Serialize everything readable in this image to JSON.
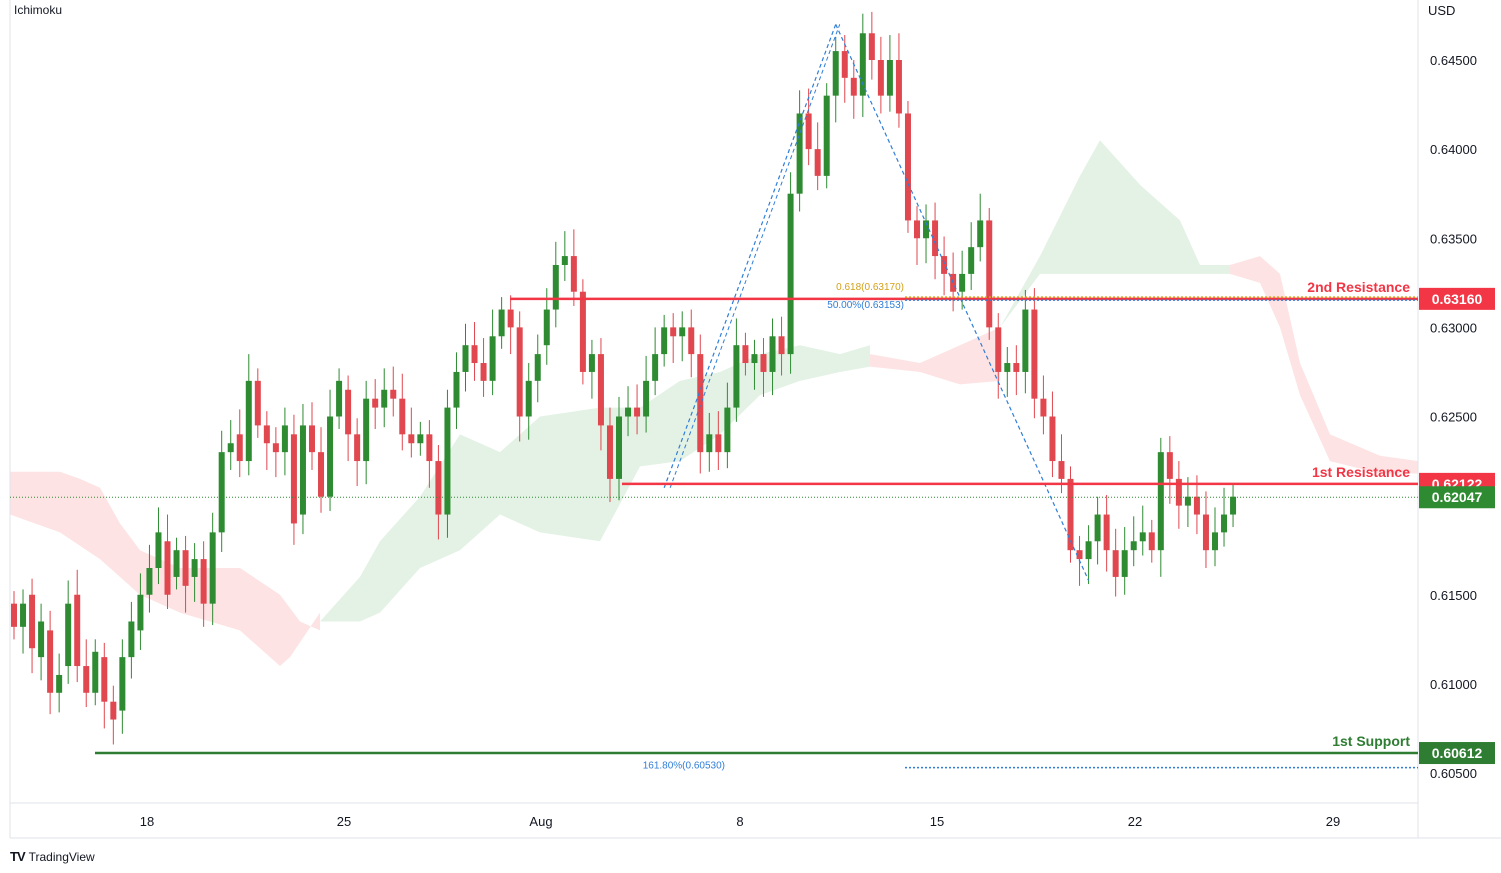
{
  "header": {
    "indicator": "Ichimoku",
    "currency": "USD"
  },
  "footer": {
    "brand": "TradingView",
    "logo": "TV"
  },
  "colors": {
    "up": "#2e8b32",
    "down": "#e0474f",
    "resistance": "#f23645",
    "support": "#2e7d32",
    "cloud_bull": "#e3f2e5",
    "cloud_bear": "#fde3e3",
    "fib_gold": "#d4a017",
    "fib_blue": "#2f7ed8"
  },
  "chart_data": {
    "type": "candlestick",
    "title": "",
    "x_ticks": [
      "18",
      "25",
      "Aug",
      "8",
      "15",
      "22",
      "29"
    ],
    "y_ticks": [
      "0.64500",
      "0.64000",
      "0.63500",
      "0.63000",
      "0.62500",
      "0.61500",
      "0.61000",
      "0.60500"
    ],
    "ylim": [
      0.6028,
      0.6475
    ],
    "current_price": "0.62047",
    "levels": [
      {
        "name": "2nd Resistance",
        "value": "0.63160",
        "kind": "resistance"
      },
      {
        "name": "1st Resistance",
        "value": "0.62122",
        "kind": "resistance"
      },
      {
        "name": "1st Support",
        "value": "0.60612",
        "kind": "support"
      }
    ],
    "fib_labels": [
      {
        "text": "0.618(0.63170)",
        "value": 0.6317,
        "color": "gold"
      },
      {
        "text": "50.00%(0.63153)",
        "value": 0.63153,
        "color": "blue"
      },
      {
        "text": "161.80%(0.60530)",
        "value": 0.6053,
        "color": "blue"
      }
    ],
    "zigzag": [
      {
        "bar": 72,
        "price": 0.621
      },
      {
        "bar": 91,
        "price": 0.647
      },
      {
        "bar": 119,
        "price": 0.6158
      }
    ],
    "candles": [
      [
        0.6145,
        0.6132
      ],
      [
        0.6132,
        0.6145
      ],
      [
        0.615,
        0.612
      ],
      [
        0.6115,
        0.6135
      ],
      [
        0.613,
        0.6095
      ],
      [
        0.6095,
        0.6105
      ],
      [
        0.611,
        0.6145
      ],
      [
        0.615,
        0.611
      ],
      [
        0.611,
        0.6095
      ],
      [
        0.6095,
        0.6118
      ],
      [
        0.6115,
        0.609
      ],
      [
        0.609,
        0.608
      ],
      [
        0.6085,
        0.6115
      ],
      [
        0.6115,
        0.6135
      ],
      [
        0.613,
        0.615
      ],
      [
        0.615,
        0.6165
      ],
      [
        0.6165,
        0.6185
      ],
      [
        0.618,
        0.615
      ],
      [
        0.616,
        0.6175
      ],
      [
        0.6175,
        0.6155
      ],
      [
        0.616,
        0.617
      ],
      [
        0.617,
        0.6145
      ],
      [
        0.6145,
        0.6185
      ],
      [
        0.6185,
        0.623
      ],
      [
        0.623,
        0.6235
      ],
      [
        0.624,
        0.6225
      ],
      [
        0.6225,
        0.627
      ],
      [
        0.627,
        0.6245
      ],
      [
        0.6245,
        0.6235
      ],
      [
        0.6235,
        0.623
      ],
      [
        0.623,
        0.6245
      ],
      [
        0.624,
        0.619
      ],
      [
        0.6195,
        0.6245
      ],
      [
        0.6245,
        0.623
      ],
      [
        0.623,
        0.6205
      ],
      [
        0.6205,
        0.625
      ],
      [
        0.625,
        0.627
      ],
      [
        0.6265,
        0.624
      ],
      [
        0.624,
        0.6225
      ],
      [
        0.6225,
        0.626
      ],
      [
        0.626,
        0.6255
      ],
      [
        0.6255,
        0.6265
      ],
      [
        0.6265,
        0.626
      ],
      [
        0.626,
        0.624
      ],
      [
        0.624,
        0.6235
      ],
      [
        0.6235,
        0.624
      ],
      [
        0.624,
        0.6225
      ],
      [
        0.6225,
        0.6195
      ],
      [
        0.6195,
        0.6255
      ],
      [
        0.6255,
        0.6275
      ],
      [
        0.6275,
        0.629
      ],
      [
        0.629,
        0.628
      ],
      [
        0.628,
        0.627
      ],
      [
        0.627,
        0.6295
      ],
      [
        0.6295,
        0.631
      ],
      [
        0.631,
        0.63
      ],
      [
        0.63,
        0.625
      ],
      [
        0.625,
        0.627
      ],
      [
        0.627,
        0.6285
      ],
      [
        0.629,
        0.631
      ],
      [
        0.631,
        0.6335
      ],
      [
        0.6335,
        0.634
      ],
      [
        0.634,
        0.632
      ],
      [
        0.632,
        0.6275
      ],
      [
        0.6275,
        0.6285
      ],
      [
        0.6285,
        0.6245
      ],
      [
        0.6245,
        0.6215
      ],
      [
        0.6215,
        0.625
      ],
      [
        0.625,
        0.6255
      ],
      [
        0.6255,
        0.625
      ],
      [
        0.625,
        0.627
      ],
      [
        0.627,
        0.6285
      ],
      [
        0.6285,
        0.63
      ],
      [
        0.63,
        0.6295
      ],
      [
        0.6295,
        0.63
      ],
      [
        0.63,
        0.6285
      ],
      [
        0.6285,
        0.623
      ],
      [
        0.623,
        0.624
      ],
      [
        0.624,
        0.623
      ],
      [
        0.623,
        0.6255
      ],
      [
        0.6255,
        0.629
      ],
      [
        0.629,
        0.628
      ],
      [
        0.628,
        0.6285
      ],
      [
        0.6285,
        0.6275
      ],
      [
        0.6275,
        0.6295
      ],
      [
        0.6295,
        0.6285
      ],
      [
        0.6285,
        0.6375
      ],
      [
        0.6375,
        0.642
      ],
      [
        0.642,
        0.64
      ],
      [
        0.64,
        0.6385
      ],
      [
        0.6385,
        0.643
      ],
      [
        0.643,
        0.6455
      ],
      [
        0.6455,
        0.644
      ],
      [
        0.644,
        0.643
      ],
      [
        0.643,
        0.6465
      ],
      [
        0.6465,
        0.645
      ],
      [
        0.645,
        0.643
      ],
      [
        0.643,
        0.645
      ],
      [
        0.645,
        0.642
      ],
      [
        0.642,
        0.636
      ],
      [
        0.636,
        0.635
      ],
      [
        0.635,
        0.636
      ],
      [
        0.636,
        0.634
      ],
      [
        0.634,
        0.633
      ],
      [
        0.633,
        0.632
      ],
      [
        0.632,
        0.633
      ],
      [
        0.633,
        0.6345
      ],
      [
        0.6345,
        0.636
      ],
      [
        0.636,
        0.63
      ],
      [
        0.63,
        0.6275
      ],
      [
        0.6275,
        0.628
      ],
      [
        0.628,
        0.6275
      ],
      [
        0.6275,
        0.631
      ],
      [
        0.631,
        0.626
      ],
      [
        0.626,
        0.625
      ],
      [
        0.625,
        0.6225
      ],
      [
        0.6225,
        0.6215
      ],
      [
        0.6215,
        0.6175
      ],
      [
        0.6175,
        0.617
      ],
      [
        0.617,
        0.618
      ],
      [
        0.618,
        0.6195
      ],
      [
        0.6195,
        0.6175
      ],
      [
        0.6175,
        0.616
      ],
      [
        0.616,
        0.6175
      ],
      [
        0.6175,
        0.618
      ],
      [
        0.618,
        0.6185
      ],
      [
        0.6185,
        0.6175
      ],
      [
        0.6175,
        0.623
      ],
      [
        0.623,
        0.6215
      ],
      [
        0.6215,
        0.62
      ],
      [
        0.62,
        0.6205
      ],
      [
        0.6205,
        0.6195
      ],
      [
        0.6195,
        0.6175
      ],
      [
        0.6175,
        0.6185
      ],
      [
        0.6185,
        0.6195
      ],
      [
        0.6195,
        0.6205
      ]
    ]
  }
}
